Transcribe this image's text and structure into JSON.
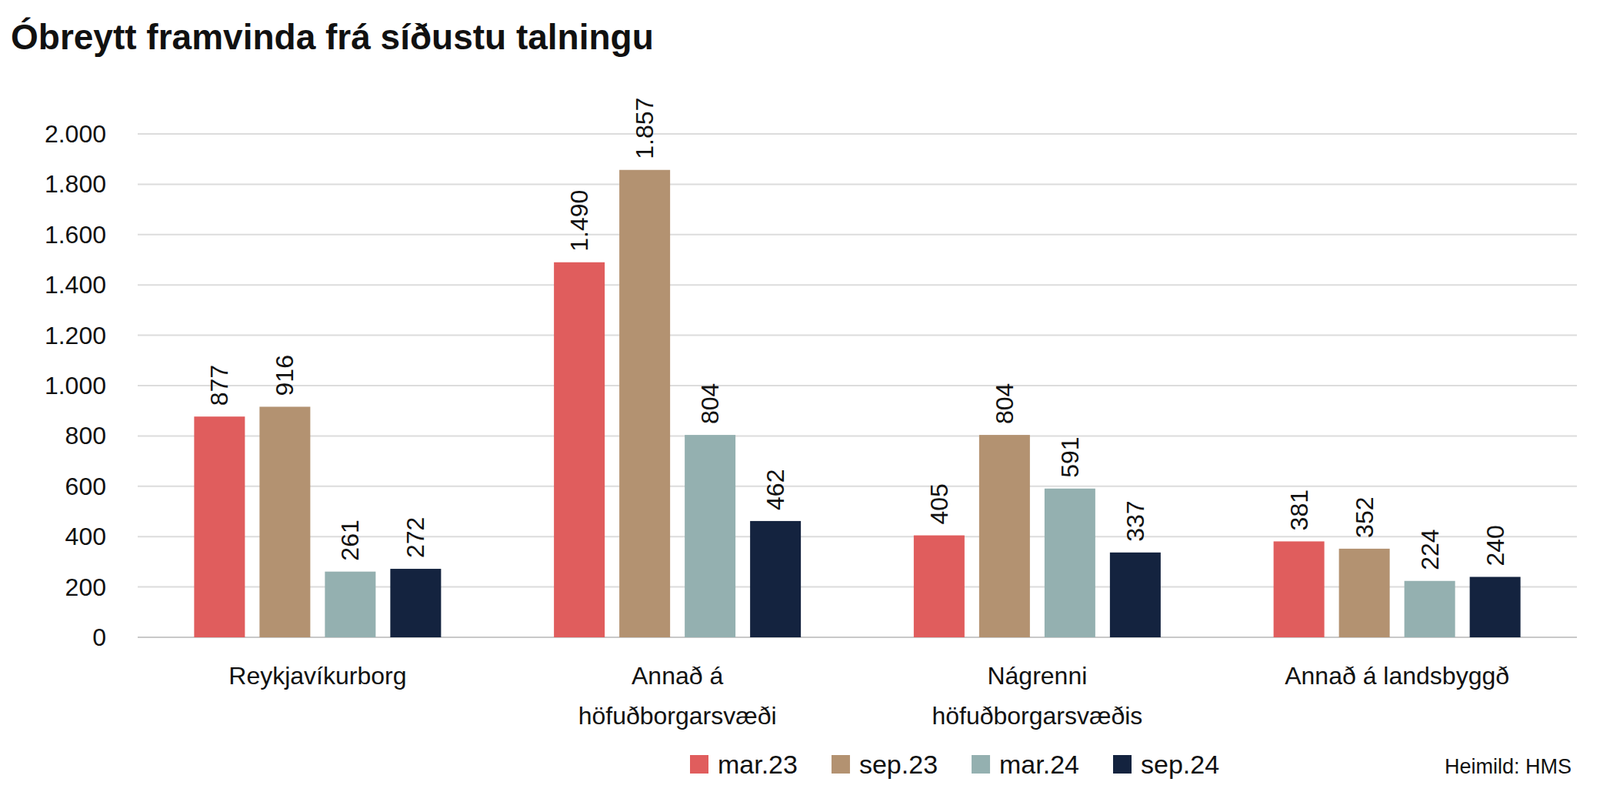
{
  "chart_data": {
    "type": "bar",
    "title": "Óbreytt framvinda frá síðustu talningu",
    "categories": [
      "Reykjavíkurborg",
      "Annað á höfuðborgarsvæði",
      "Nágrenni höfuðborgarsvæðis",
      "Annað á landsbyggð"
    ],
    "series": [
      {
        "name": "mar.23",
        "color": "#e05d5d",
        "values": [
          877,
          1490,
          405,
          381
        ],
        "value_labels": [
          "877",
          "1.490",
          "405",
          "381"
        ]
      },
      {
        "name": "sep.23",
        "color": "#b39271",
        "values": [
          916,
          1857,
          804,
          352
        ],
        "value_labels": [
          "916",
          "1.857",
          "804",
          "352"
        ]
      },
      {
        "name": "mar.24",
        "color": "#94b0b0",
        "values": [
          261,
          804,
          591,
          224
        ],
        "value_labels": [
          "261",
          "804",
          "591",
          "224"
        ]
      },
      {
        "name": "sep.24",
        "color": "#14233f",
        "values": [
          272,
          462,
          337,
          240
        ],
        "value_labels": [
          "272",
          "462",
          "337",
          "240"
        ]
      }
    ],
    "ylim": [
      0,
      2000
    ],
    "yticks": [
      0,
      200,
      400,
      600,
      800,
      {
        "value": 1000,
        "label": "1.000"
      },
      {
        "value": 1200,
        "label": "1.200"
      },
      {
        "value": 1400,
        "label": "1.400"
      },
      {
        "value": 1600,
        "label": "1.600"
      },
      {
        "value": 1800,
        "label": "1.800"
      },
      {
        "value": 2000,
        "label": "2.000"
      }
    ],
    "grid": true,
    "data_labels": true,
    "legend": "bottom",
    "annotations": [
      "Heimild: HMS"
    ]
  }
}
